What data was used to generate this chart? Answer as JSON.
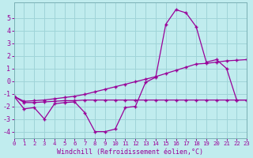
{
  "xlabel": "Windchill (Refroidissement éolien,°C)",
  "bg_color": "#c0ecee",
  "grid_color": "#9fd4d8",
  "line_color": "#990099",
  "x_values": [
    0,
    1,
    2,
    3,
    4,
    5,
    6,
    7,
    8,
    9,
    10,
    11,
    12,
    13,
    14,
    15,
    16,
    17,
    18,
    19,
    20,
    21,
    22,
    23
  ],
  "line1": [
    -1.2,
    -2.2,
    -2.1,
    -3.0,
    -1.8,
    -1.7,
    -1.65,
    -2.5,
    -4.0,
    -4.0,
    -3.8,
    -2.1,
    -2.0,
    -0.1,
    0.3,
    4.5,
    5.65,
    5.4,
    4.3,
    1.5,
    1.7,
    1.0,
    -1.5,
    -1.5
  ],
  "line2": [
    -1.2,
    -1.7,
    -1.7,
    -1.65,
    -1.6,
    -1.55,
    -1.55,
    -1.5,
    -1.5,
    -1.5,
    -1.5,
    -1.5,
    -1.5,
    -1.5,
    -1.5,
    -1.5,
    -1.5,
    -1.5,
    -1.5,
    -1.5,
    -1.5,
    -1.5,
    -1.5,
    -1.5
  ],
  "line3": [
    -1.2,
    -1.6,
    -1.55,
    -1.5,
    -1.4,
    -1.3,
    -1.2,
    -1.05,
    -0.85,
    -0.65,
    -0.45,
    -0.25,
    -0.05,
    0.15,
    0.35,
    0.6,
    0.85,
    1.1,
    1.35,
    1.4,
    1.5,
    1.6,
    1.65,
    1.7
  ],
  "ylim": [
    -4.5,
    6.2
  ],
  "xlim": [
    0,
    23
  ],
  "yticks": [
    -4,
    -3,
    -2,
    -1,
    0,
    1,
    2,
    3,
    4,
    5
  ],
  "xticks": [
    0,
    1,
    2,
    3,
    4,
    5,
    6,
    7,
    8,
    9,
    10,
    11,
    12,
    13,
    14,
    15,
    16,
    17,
    18,
    19,
    20,
    21,
    22,
    23
  ]
}
